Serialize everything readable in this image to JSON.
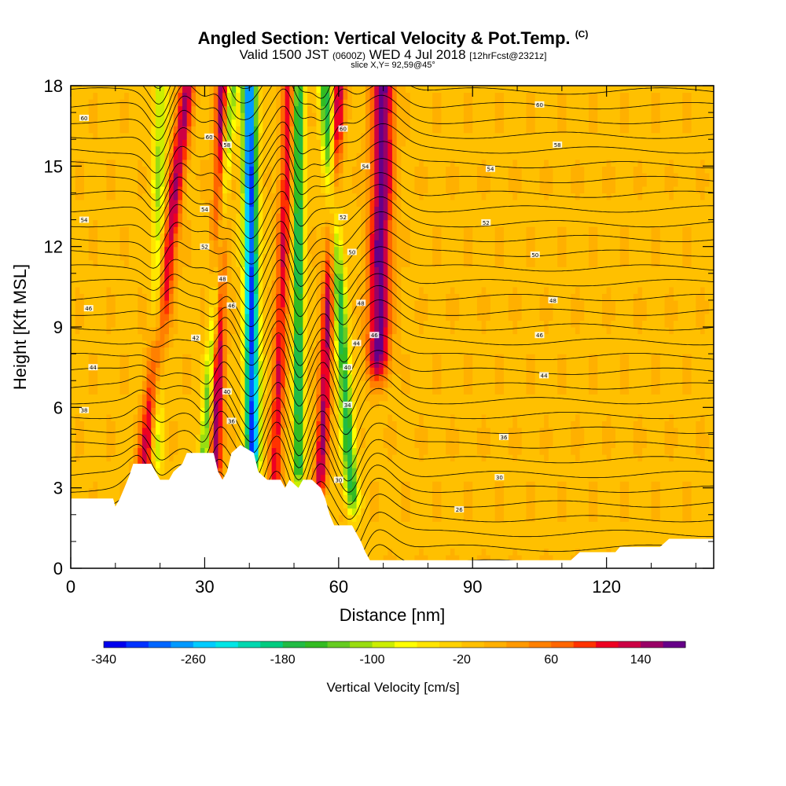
{
  "header": {
    "title_main": "Angled Section: Vertical Velocity & Pot.Temp.",
    "title_unit": "(C)",
    "valid_prefix": "Valid 1500 JST",
    "valid_utc": "(0600Z)",
    "valid_date": "WED 4 Jul 2018",
    "forecast_info": "[12hrFcst@2321z]",
    "slice_info": "slice X,Y= 92,59@45°"
  },
  "chart_data": {
    "type": "heatmap",
    "xlabel": "Distance [nm]",
    "ylabel": "Height [Kft MSL]",
    "xlim": [
      0,
      144
    ],
    "ylim": [
      0,
      18
    ],
    "x_ticks": [
      0,
      30,
      60,
      90,
      120
    ],
    "y_ticks": [
      0,
      3,
      6,
      9,
      12,
      15,
      18
    ],
    "colorbar": {
      "title": "Vertical Velocity [cm/s]",
      "labels": [
        "-340",
        "-260",
        "-180",
        "-100",
        "-20",
        "60",
        "140"
      ],
      "label_values": [
        -340,
        -260,
        -180,
        -100,
        -20,
        60,
        140
      ],
      "bin_edges": [
        -340,
        -320,
        -300,
        -280,
        -260,
        -240,
        -220,
        -200,
        -180,
        -160,
        -140,
        -120,
        -100,
        -80,
        -60,
        -40,
        -20,
        0,
        20,
        40,
        60,
        80,
        100,
        120,
        140,
        160,
        180
      ],
      "colors": [
        "#0000ee",
        "#0033ff",
        "#0066ff",
        "#0099ff",
        "#00ccff",
        "#00e6e6",
        "#00d8b0",
        "#00cc80",
        "#22bb44",
        "#33bb22",
        "#66cc22",
        "#99dd11",
        "#ccee00",
        "#ffff00",
        "#ffe500",
        "#ffd200",
        "#ffc000",
        "#ffb000",
        "#ff9900",
        "#ff8000",
        "#ff6600",
        "#ff3300",
        "#ee0022",
        "#cc0044",
        "#990066",
        "#660088"
      ]
    },
    "background_value": -5,
    "updraft_bands": [
      {
        "x_bottom": 14,
        "x_top": 26,
        "half_width": 1.8,
        "peak": 145,
        "z_base": 3.5
      },
      {
        "x_bottom": 32,
        "x_top": 34,
        "half_width": 1.5,
        "peak": 165,
        "z_base": 4.0
      },
      {
        "x_bottom": 45,
        "x_top": 49,
        "half_width": 1.5,
        "peak": 120,
        "z_base": 3.5
      },
      {
        "x_bottom": 55,
        "x_top": 60,
        "half_width": 1.4,
        "peak": 150,
        "z_base": 3.5
      },
      {
        "x_bottom": 68,
        "x_top": 70,
        "half_width": 2.5,
        "peak": 175,
        "z_base": 8.0
      }
    ],
    "downdraft_bands": [
      {
        "x_bottom": 19,
        "x_top": 20,
        "half_width": 1.5,
        "peak": -100,
        "z_base": 4.5
      },
      {
        "x_bottom": 28,
        "x_top": 36,
        "half_width": 1.2,
        "peak": -150,
        "z_base": 4.0
      },
      {
        "x_bottom": 41,
        "x_top": 40,
        "half_width": 1.6,
        "peak": -300,
        "z_base": 4.5
      },
      {
        "x_bottom": 51,
        "x_top": 51,
        "half_width": 1.2,
        "peak": -190,
        "z_base": 4.0
      },
      {
        "x_bottom": 64,
        "x_top": 57,
        "half_width": 1.5,
        "peak": -170,
        "z_base": 3.0
      }
    ],
    "terrain_kft": [
      [
        0,
        2.6
      ],
      [
        9.5,
        2.6
      ],
      [
        10,
        2.3
      ],
      [
        11,
        2.6
      ],
      [
        12,
        3.0
      ],
      [
        13,
        3.4
      ],
      [
        14,
        3.9
      ],
      [
        18,
        3.9
      ],
      [
        19,
        3.6
      ],
      [
        20,
        3.3
      ],
      [
        22,
        3.3
      ],
      [
        23,
        3.6
      ],
      [
        25,
        3.9
      ],
      [
        26,
        4.3
      ],
      [
        32,
        4.3
      ],
      [
        33,
        3.6
      ],
      [
        34,
        3.3
      ],
      [
        35,
        3.6
      ],
      [
        36,
        4.3
      ],
      [
        38,
        4.6
      ],
      [
        41,
        4.3
      ],
      [
        42,
        3.6
      ],
      [
        44,
        3.3
      ],
      [
        47,
        3.3
      ],
      [
        48,
        3.0
      ],
      [
        49,
        3.3
      ],
      [
        51,
        3.0
      ],
      [
        52,
        3.3
      ],
      [
        54,
        3.3
      ],
      [
        56,
        3.0
      ],
      [
        57,
        2.6
      ],
      [
        58,
        2.0
      ],
      [
        59,
        1.6
      ],
      [
        63,
        1.6
      ],
      [
        64,
        1.3
      ],
      [
        65,
        1.0
      ],
      [
        66,
        0.6
      ],
      [
        67,
        0.3
      ],
      [
        112,
        0.3
      ],
      [
        114,
        0.6
      ],
      [
        122,
        0.6
      ],
      [
        123,
        0.8
      ],
      [
        132,
        0.8
      ],
      [
        134,
        1.1
      ],
      [
        144,
        1.1
      ]
    ],
    "theta_isolines_C": {
      "base_value": 25,
      "interval": 1,
      "count": 36,
      "spacing_kft": 0.55,
      "start_kft": 0.2
    },
    "isoline_labels": [
      {
        "x": 3,
        "z": 16.8,
        "text": "60"
      },
      {
        "x": 3,
        "z": 13.0,
        "text": "54"
      },
      {
        "x": 4,
        "z": 9.7,
        "text": "46"
      },
      {
        "x": 5,
        "z": 7.5,
        "text": "44"
      },
      {
        "x": 3,
        "z": 5.9,
        "text": "38"
      },
      {
        "x": 31,
        "z": 16.1,
        "text": "60"
      },
      {
        "x": 35,
        "z": 15.8,
        "text": "58"
      },
      {
        "x": 30,
        "z": 13.4,
        "text": "54"
      },
      {
        "x": 30,
        "z": 12.0,
        "text": "52"
      },
      {
        "x": 34,
        "z": 10.8,
        "text": "48"
      },
      {
        "x": 36,
        "z": 9.8,
        "text": "46"
      },
      {
        "x": 28,
        "z": 8.6,
        "text": "42"
      },
      {
        "x": 35,
        "z": 6.6,
        "text": "40"
      },
      {
        "x": 36,
        "z": 5.5,
        "text": "36"
      },
      {
        "x": 61,
        "z": 16.4,
        "text": "60"
      },
      {
        "x": 66,
        "z": 15.0,
        "text": "54"
      },
      {
        "x": 61,
        "z": 13.1,
        "text": "52"
      },
      {
        "x": 63,
        "z": 11.8,
        "text": "50"
      },
      {
        "x": 65,
        "z": 9.9,
        "text": "48"
      },
      {
        "x": 68,
        "z": 8.7,
        "text": "46"
      },
      {
        "x": 64,
        "z": 8.4,
        "text": "44"
      },
      {
        "x": 62,
        "z": 7.5,
        "text": "40"
      },
      {
        "x": 62,
        "z": 6.1,
        "text": "34"
      },
      {
        "x": 60,
        "z": 3.3,
        "text": "30"
      },
      {
        "x": 105,
        "z": 17.3,
        "text": "60"
      },
      {
        "x": 109,
        "z": 15.8,
        "text": "58"
      },
      {
        "x": 94,
        "z": 14.9,
        "text": "54"
      },
      {
        "x": 93,
        "z": 12.9,
        "text": "52"
      },
      {
        "x": 104,
        "z": 11.7,
        "text": "50"
      },
      {
        "x": 108,
        "z": 10.0,
        "text": "48"
      },
      {
        "x": 105,
        "z": 8.7,
        "text": "46"
      },
      {
        "x": 106,
        "z": 7.2,
        "text": "44"
      },
      {
        "x": 97,
        "z": 4.9,
        "text": "36"
      },
      {
        "x": 96,
        "z": 3.4,
        "text": "30"
      },
      {
        "x": 87,
        "z": 2.2,
        "text": "26"
      }
    ]
  }
}
